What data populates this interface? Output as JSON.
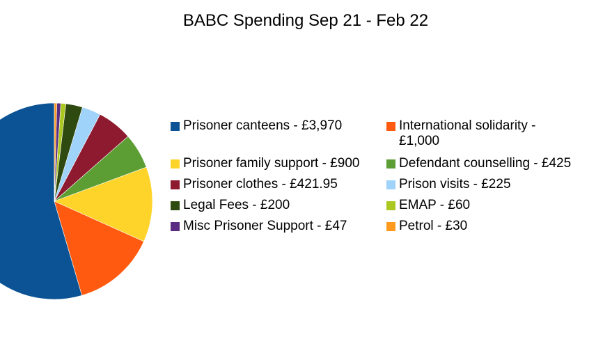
{
  "chart_data": {
    "type": "pie",
    "title": "BABC Spending Sep 21 - Feb 22",
    "legend_position": "right",
    "slices": [
      {
        "label": "Prisoner canteens - £3,970",
        "value": 3970,
        "color": "#0b5394"
      },
      {
        "label": "International solidarity - £1,000",
        "value": 1000,
        "color": "#ff5a0f"
      },
      {
        "label": "Prisoner family support - £900",
        "value": 900,
        "color": "#ffd42a"
      },
      {
        "label": "Defendant counselling - £425",
        "value": 425,
        "color": "#5c9e34"
      },
      {
        "label": "Prisoner clothes - £421.95",
        "value": 421.95,
        "color": "#8e1a30"
      },
      {
        "label": "Prison visits - £225",
        "value": 225,
        "color": "#9fd3f9"
      },
      {
        "label": "Legal Fees - £200",
        "value": 200,
        "color": "#2f4a10"
      },
      {
        "label": "EMAP - £60",
        "value": 60,
        "color": "#aac81f"
      },
      {
        "label": "Misc Prisoner Support - £47",
        "value": 47,
        "color": "#5a2d82"
      },
      {
        "label": "Petrol - £30",
        "value": 30,
        "color": "#ff9a1e"
      }
    ]
  }
}
